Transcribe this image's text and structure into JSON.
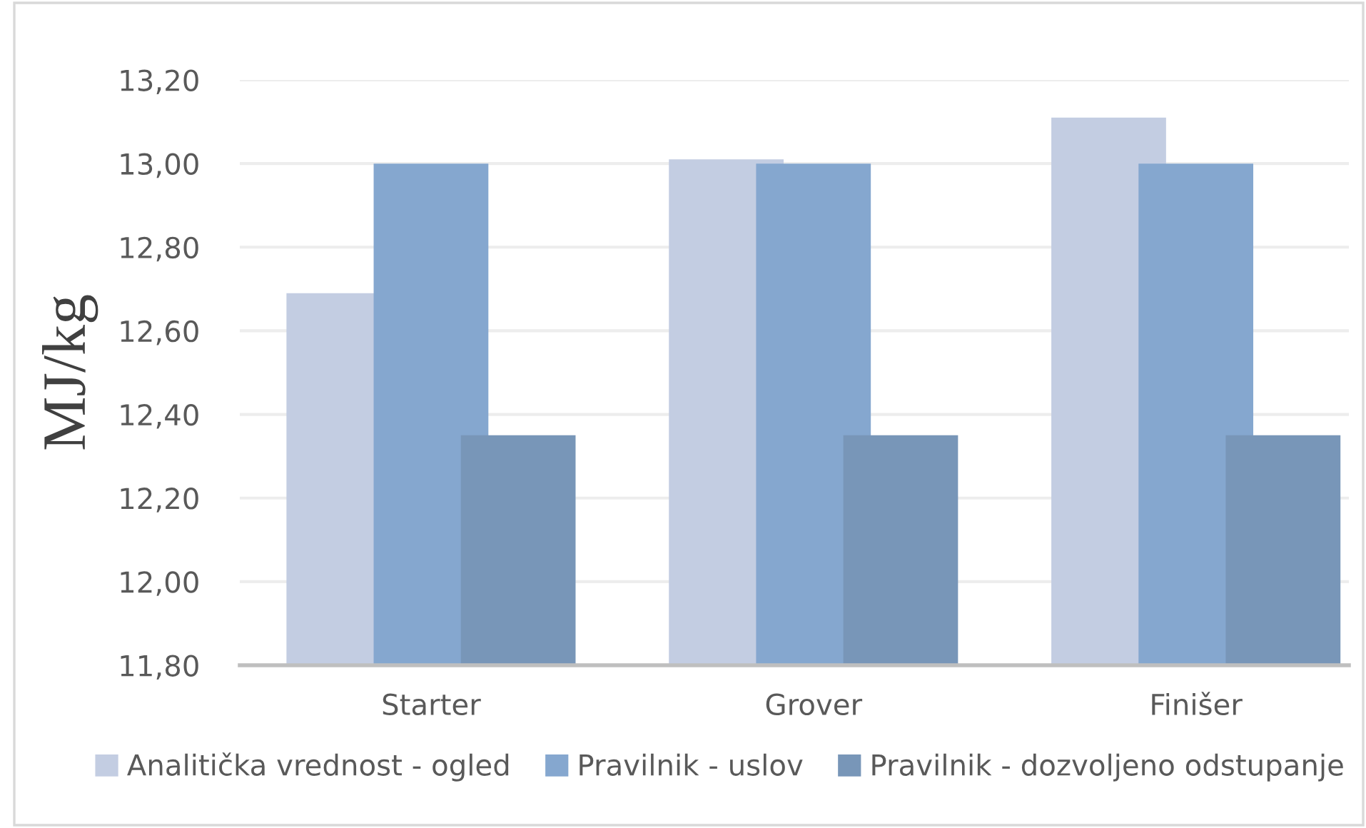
{
  "chart_data": {
    "type": "bar",
    "ylabel": "MJ/kg",
    "categories": [
      "Starter",
      "Grover",
      "Finišer"
    ],
    "series": [
      {
        "name": "Analitička vrednost - ogled",
        "color": "#c3cde2",
        "values": [
          12.69,
          13.01,
          13.11
        ]
      },
      {
        "name": "Pravilnik - uslov",
        "color": "#85a7cf",
        "values": [
          13.0,
          13.0,
          13.0
        ]
      },
      {
        "name": "Pravilnik - dozvoljeno odstupanje",
        "color": "#7896b8",
        "values": [
          12.35,
          12.35,
          12.35
        ]
      }
    ],
    "ylim": [
      11.8,
      13.2
    ],
    "yticks": [
      {
        "value": 11.8,
        "label": "11,80"
      },
      {
        "value": 12.0,
        "label": "12,00"
      },
      {
        "value": 12.2,
        "label": "12,20"
      },
      {
        "value": 12.4,
        "label": "12,40"
      },
      {
        "value": 12.6,
        "label": "12,60"
      },
      {
        "value": 12.8,
        "label": "12,80"
      },
      {
        "value": 13.0,
        "label": "13,00"
      },
      {
        "value": 13.2,
        "label": "13,20"
      }
    ],
    "grid": "y",
    "legend": "bottom"
  }
}
